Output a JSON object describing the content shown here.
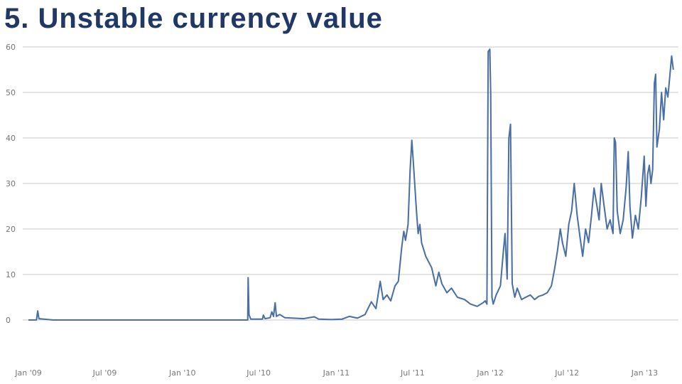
{
  "slide": {
    "title": "5. Unstable currency value"
  },
  "chart_data": {
    "type": "line",
    "title": "",
    "xlabel": "",
    "ylabel": "",
    "ylim": [
      0,
      60
    ],
    "yticks": [
      0,
      10,
      20,
      30,
      40,
      50,
      60
    ],
    "xticks": [
      {
        "label": "Jan '09",
        "x": "2009-01"
      },
      {
        "label": "Jul '09",
        "x": "2009-07"
      },
      {
        "label": "Jan '10",
        "x": "2010-01"
      },
      {
        "label": "Jul '10",
        "x": "2010-07"
      },
      {
        "label": "Jan '11",
        "x": "2011-01"
      },
      {
        "label": "Jul '11",
        "x": "2011-07"
      },
      {
        "label": "Jan '12",
        "x": "2012-01"
      },
      {
        "label": "Jul '12",
        "x": "2012-07"
      },
      {
        "label": "Jan '13",
        "x": "2013-01"
      }
    ],
    "grid": true,
    "legend": "none",
    "series": [
      {
        "color": "#4a6fa5",
        "points": [
          [
            "2009-01-01",
            0
          ],
          [
            "2009-01-20",
            0
          ],
          [
            "2009-01-23",
            2
          ],
          [
            "2009-01-26",
            0.3
          ],
          [
            "2009-03-01",
            0
          ],
          [
            "2009-09-01",
            0
          ],
          [
            "2010-03-01",
            0
          ],
          [
            "2010-05-15",
            0
          ],
          [
            "2010-06-05",
            0
          ],
          [
            "2010-06-06",
            9.3
          ],
          [
            "2010-06-08",
            1.2
          ],
          [
            "2010-06-12",
            0.2
          ],
          [
            "2010-07-10",
            0.2
          ],
          [
            "2010-07-12",
            1.1
          ],
          [
            "2010-07-16",
            0.3
          ],
          [
            "2010-07-28",
            0.5
          ],
          [
            "2010-08-01",
            1.8
          ],
          [
            "2010-08-05",
            0.8
          ],
          [
            "2010-08-09",
            3.8
          ],
          [
            "2010-08-12",
            0.8
          ],
          [
            "2010-08-20",
            1.2
          ],
          [
            "2010-09-01",
            0.5
          ],
          [
            "2010-10-15",
            0.3
          ],
          [
            "2010-11-10",
            0.7
          ],
          [
            "2010-11-20",
            0.2
          ],
          [
            "2010-12-20",
            0.1
          ],
          [
            "2011-01-15",
            0.2
          ],
          [
            "2011-02-01",
            0.8
          ],
          [
            "2011-02-20",
            0.4
          ],
          [
            "2011-03-10",
            1.2
          ],
          [
            "2011-03-25",
            4.0
          ],
          [
            "2011-04-05",
            2.5
          ],
          [
            "2011-04-15",
            8.5
          ],
          [
            "2011-04-22",
            4.5
          ],
          [
            "2011-05-01",
            5.5
          ],
          [
            "2011-05-10",
            4.2
          ],
          [
            "2011-05-20",
            7.5
          ],
          [
            "2011-05-28",
            8.5
          ],
          [
            "2011-06-05",
            16
          ],
          [
            "2011-06-10",
            19.5
          ],
          [
            "2011-06-14",
            17.5
          ],
          [
            "2011-06-20",
            21
          ],
          [
            "2011-06-25",
            33
          ],
          [
            "2011-06-29",
            39.5
          ],
          [
            "2011-07-03",
            34
          ],
          [
            "2011-07-10",
            24
          ],
          [
            "2011-07-14",
            19
          ],
          [
            "2011-07-18",
            21
          ],
          [
            "2011-07-22",
            17
          ],
          [
            "2011-08-01",
            14
          ],
          [
            "2011-08-15",
            11.5
          ],
          [
            "2011-08-25",
            7.5
          ],
          [
            "2011-09-01",
            10.5
          ],
          [
            "2011-09-08",
            8
          ],
          [
            "2011-09-20",
            6
          ],
          [
            "2011-10-01",
            7
          ],
          [
            "2011-10-15",
            5
          ],
          [
            "2011-11-01",
            4.5
          ],
          [
            "2011-11-15",
            3.5
          ],
          [
            "2011-12-01",
            3.0
          ],
          [
            "2011-12-15",
            3.8
          ],
          [
            "2011-12-20",
            4.2
          ],
          [
            "2011-12-24",
            3.5
          ],
          [
            "2011-12-27",
            59
          ],
          [
            "2011-12-31",
            59.5
          ],
          [
            "2012-01-02",
            50
          ],
          [
            "2012-01-05",
            5
          ],
          [
            "2012-01-08",
            3.5
          ],
          [
            "2012-01-15",
            5.5
          ],
          [
            "2012-01-25",
            7.5
          ],
          [
            "2012-02-01",
            15
          ],
          [
            "2012-02-05",
            19
          ],
          [
            "2012-02-10",
            9
          ],
          [
            "2012-02-14",
            40
          ],
          [
            "2012-02-18",
            43
          ],
          [
            "2012-02-22",
            8
          ],
          [
            "2012-02-28",
            5
          ],
          [
            "2012-03-05",
            7
          ],
          [
            "2012-03-15",
            4.5
          ],
          [
            "2012-03-25",
            5
          ],
          [
            "2012-04-05",
            5.5
          ],
          [
            "2012-04-15",
            4.5
          ],
          [
            "2012-04-25",
            5.2
          ],
          [
            "2012-05-05",
            5.5
          ],
          [
            "2012-05-15",
            6
          ],
          [
            "2012-05-25",
            7.5
          ],
          [
            "2012-06-01",
            11
          ],
          [
            "2012-06-08",
            15
          ],
          [
            "2012-06-15",
            20
          ],
          [
            "2012-06-20",
            17
          ],
          [
            "2012-06-28",
            14
          ],
          [
            "2012-07-05",
            21
          ],
          [
            "2012-07-12",
            24
          ],
          [
            "2012-07-18",
            30
          ],
          [
            "2012-07-25",
            23
          ],
          [
            "2012-08-01",
            18
          ],
          [
            "2012-08-07",
            14
          ],
          [
            "2012-08-14",
            20
          ],
          [
            "2012-08-21",
            17
          ],
          [
            "2012-08-28",
            23
          ],
          [
            "2012-09-03",
            29
          ],
          [
            "2012-09-10",
            25
          ],
          [
            "2012-09-15",
            22
          ],
          [
            "2012-09-20",
            30
          ],
          [
            "2012-09-27",
            25
          ],
          [
            "2012-10-04",
            20
          ],
          [
            "2012-10-11",
            22
          ],
          [
            "2012-10-18",
            19
          ],
          [
            "2012-10-21",
            40
          ],
          [
            "2012-10-24",
            39
          ],
          [
            "2012-10-28",
            24
          ],
          [
            "2012-11-04",
            19
          ],
          [
            "2012-11-11",
            22
          ],
          [
            "2012-11-18",
            29
          ],
          [
            "2012-11-23",
            37
          ],
          [
            "2012-11-27",
            25
          ],
          [
            "2012-12-03",
            18
          ],
          [
            "2012-12-10",
            23
          ],
          [
            "2012-12-17",
            20
          ],
          [
            "2012-12-24",
            27
          ],
          [
            "2012-12-31",
            36
          ],
          [
            "2013-01-04",
            25
          ],
          [
            "2013-01-08",
            32
          ],
          [
            "2013-01-12",
            34
          ],
          [
            "2013-01-16",
            30
          ],
          [
            "2013-01-20",
            33
          ],
          [
            "2013-01-24",
            52
          ],
          [
            "2013-01-27",
            54
          ],
          [
            "2013-01-30",
            38
          ],
          [
            "2013-02-05",
            42
          ],
          [
            "2013-02-10",
            50
          ],
          [
            "2013-02-15",
            44
          ],
          [
            "2013-02-20",
            51
          ],
          [
            "2013-02-25",
            49
          ],
          [
            "2013-03-02",
            54
          ],
          [
            "2013-03-06",
            58
          ],
          [
            "2013-03-10",
            55
          ]
        ]
      }
    ]
  }
}
